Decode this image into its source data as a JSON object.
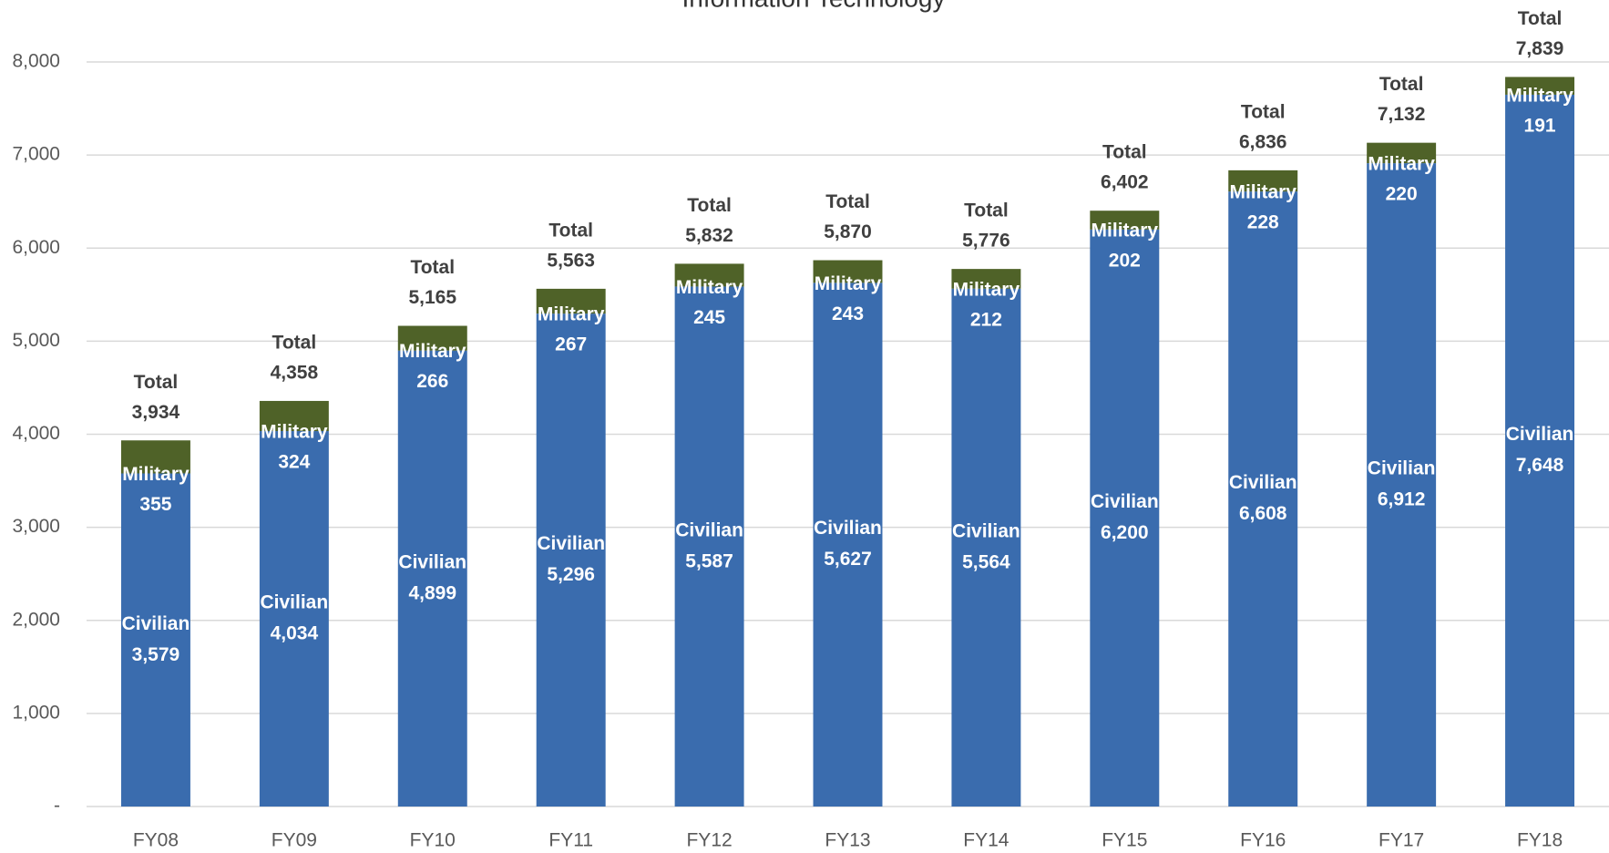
{
  "chart_data": {
    "type": "stacked_bar",
    "title": "Information Technology",
    "categories": [
      "FY08",
      "FY09",
      "FY10",
      "FY11",
      "FY12",
      "FY13",
      "FY14",
      "FY15",
      "FY16",
      "FY17",
      "FY18"
    ],
    "series": [
      {
        "name": "Civilian",
        "color": "#3a6cae",
        "values": [
          3579,
          4034,
          4899,
          5296,
          5587,
          5627,
          5564,
          6200,
          6608,
          6912,
          7648
        ],
        "value_labels": [
          "3,579",
          "4,034",
          "4,899",
          "5,296",
          "5,587",
          "5,627",
          "5,564",
          "6,200",
          "6,608",
          "6,912",
          "7,648"
        ]
      },
      {
        "name": "Military",
        "color": "#4f6228",
        "values": [
          355,
          324,
          266,
          267,
          245,
          243,
          212,
          202,
          228,
          220,
          191
        ],
        "value_labels": [
          "355",
          "324",
          "266",
          "267",
          "245",
          "243",
          "212",
          "202",
          "228",
          "220",
          "191"
        ]
      }
    ],
    "total_name": "Total",
    "totals": [
      3934,
      4358,
      5165,
      5563,
      5832,
      5870,
      5776,
      6402,
      6836,
      7132,
      7839
    ],
    "total_labels": [
      "3,934",
      "4,358",
      "5,165",
      "5,563",
      "5,832",
      "5,870",
      "5,776",
      "6,402",
      "6,836",
      "7,132",
      "7,839"
    ],
    "ylim": [
      0,
      8000
    ],
    "yticks": [
      {
        "value": 0,
        "label": "-"
      },
      {
        "value": 1000,
        "label": "1,000"
      },
      {
        "value": 2000,
        "label": "2,000"
      },
      {
        "value": 3000,
        "label": "3,000"
      },
      {
        "value": 4000,
        "label": "4,000"
      },
      {
        "value": 5000,
        "label": "5,000"
      },
      {
        "value": 6000,
        "label": "6,000"
      },
      {
        "value": 7000,
        "label": "7,000"
      },
      {
        "value": 8000,
        "label": "8,000"
      }
    ],
    "grid": true
  }
}
